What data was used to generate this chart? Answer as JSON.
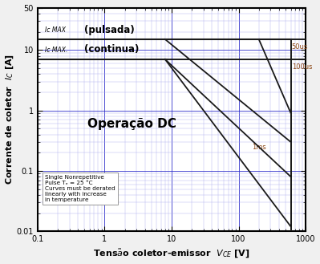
{
  "xlim": [
    0.1,
    1000
  ],
  "ylim": [
    0.01,
    50
  ],
  "ic_max_pulsada": 15,
  "ic_max_continua": 7,
  "label_dc": "Operação DC",
  "annotation_box": "Single Nonrepetitive\nPulse Tₑ = 25 °C\nCurves must be derated\nlinearly with increase\nin temperature",
  "curve_color": "#1a1a1a",
  "grid_major_color": "#3333cc",
  "grid_minor_color": "#aaaaee",
  "bg_plot": "#ffffff",
  "bg_figure": "#f0f0f0",
  "label_50us": "50us",
  "label_100us": "100us",
  "label_1ms": "1ms",
  "label_color": "#8B4513",
  "soa_curves": {
    "dc": {
      "x": [
        8,
        600,
        600
      ],
      "y": [
        7.0,
        0.012,
        0.012
      ]
    },
    "1ms": {
      "x": [
        8,
        600,
        600
      ],
      "y": [
        7.0,
        0.05,
        0.05
      ]
    },
    "100us": {
      "x": [
        8,
        600,
        600
      ],
      "y": [
        15.0,
        0.15,
        0.15
      ]
    },
    "50us": {
      "x": [
        8,
        600,
        600
      ],
      "y": [
        15.0,
        0.5,
        0.5
      ]
    }
  },
  "xticks": [
    0.1,
    1,
    10,
    100,
    1000
  ],
  "xticklabels": [
    "0.1",
    "1",
    "10",
    "100",
    "1000"
  ],
  "yticks": [
    0.01,
    0.1,
    1,
    10,
    50
  ],
  "yticklabels": [
    "0.01",
    "0.1",
    "1",
    "10",
    "50"
  ]
}
